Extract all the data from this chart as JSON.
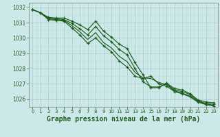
{
  "background_color": "#cce8e8",
  "grid_color_major": "#aacccc",
  "grid_color_minor": "#bbdddd",
  "line_color": "#1e5c1e",
  "title": "Graphe pression niveau de la mer (hPa)",
  "xlim": [
    -0.5,
    23.5
  ],
  "ylim": [
    1025.5,
    1032.3
  ],
  "yticks": [
    1026,
    1027,
    1028,
    1029,
    1030,
    1031,
    1032
  ],
  "xticks": [
    0,
    1,
    2,
    3,
    4,
    5,
    6,
    7,
    8,
    9,
    10,
    11,
    12,
    13,
    14,
    15,
    16,
    17,
    18,
    19,
    20,
    21,
    22,
    23
  ],
  "series": [
    [
      1031.85,
      1031.65,
      1031.35,
      1031.3,
      1031.3,
      1031.1,
      1030.85,
      1030.55,
      1031.1,
      1030.45,
      1030.05,
      1029.6,
      1029.3,
      1028.4,
      1027.6,
      1026.75,
      1026.75,
      1027.05,
      1026.7,
      1026.6,
      1026.35,
      1025.95,
      1025.82,
      1025.77
    ],
    [
      1031.85,
      1031.65,
      1031.3,
      1031.25,
      1031.2,
      1030.95,
      1030.6,
      1030.2,
      1030.75,
      1030.15,
      1029.75,
      1029.25,
      1028.9,
      1028.0,
      1027.15,
      1026.8,
      1026.8,
      1027.0,
      1026.6,
      1026.5,
      1026.3,
      1025.9,
      1025.72,
      1025.67
    ],
    [
      1031.85,
      1031.65,
      1031.25,
      1031.2,
      1031.15,
      1030.8,
      1030.4,
      1029.9,
      1030.35,
      1029.7,
      1029.35,
      1028.8,
      1028.45,
      1027.75,
      1027.4,
      1027.35,
      1027.1,
      1026.95,
      1026.55,
      1026.4,
      1026.2,
      1025.85,
      1025.7,
      1025.6
    ],
    [
      1031.85,
      1031.65,
      1031.2,
      1031.15,
      1031.1,
      1030.65,
      1030.2,
      1029.65,
      1030.0,
      1029.5,
      1029.1,
      1028.5,
      1028.1,
      1027.5,
      1027.35,
      1027.5,
      1027.0,
      1026.85,
      1026.5,
      1026.35,
      1026.15,
      1025.8,
      1025.65,
      1025.55
    ]
  ],
  "markers_on": [
    0,
    1,
    3
  ],
  "title_fontsize": 7,
  "tick_fontsize": 5.5,
  "xtick_fontsize": 5.0,
  "linewidth": 0.85,
  "markersize": 3.5
}
